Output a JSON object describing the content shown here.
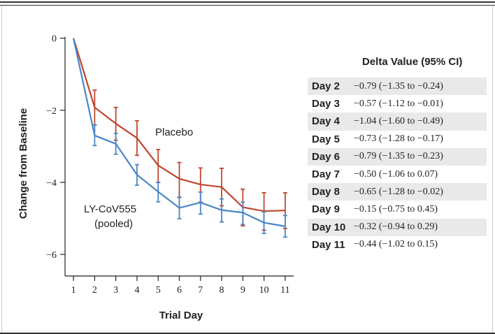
{
  "chart_data": {
    "type": "line",
    "xlabel": "Trial Day",
    "ylabel": "Change from Baseline",
    "x": [
      1,
      2,
      3,
      4,
      5,
      6,
      7,
      8,
      9,
      10,
      11
    ],
    "xticks": [
      "1",
      "2",
      "3",
      "4",
      "5",
      "6",
      "7",
      "8",
      "9",
      "10",
      "11"
    ],
    "yticks": [
      {
        "value": 0,
        "label": "0"
      },
      {
        "value": -2,
        "label": "−2"
      },
      {
        "value": -4,
        "label": "−4"
      },
      {
        "value": -6,
        "label": "−6"
      }
    ],
    "xlim": [
      0.6,
      11.4
    ],
    "ylim": [
      -6.6,
      0.15
    ],
    "grid": false,
    "series": [
      {
        "name": "Placebo",
        "color": "#c0462f",
        "values": [
          0,
          -1.92,
          -2.37,
          -2.77,
          -3.53,
          -3.9,
          -4.06,
          -4.13,
          -4.69,
          -4.8,
          -4.78
        ],
        "upper": [
          0,
          -1.44,
          -1.92,
          -2.29,
          -3.09,
          -3.45,
          -3.6,
          -3.61,
          -4.19,
          -4.29,
          -4.29
        ],
        "lower": [
          0,
          -2.41,
          -2.83,
          -3.25,
          -4.0,
          -4.42,
          -4.55,
          -4.65,
          -5.21,
          -5.33,
          -5.28
        ]
      },
      {
        "name": "LY-CoV555 (pooled)",
        "color": "#4a86c8",
        "values": [
          0,
          -2.7,
          -2.93,
          -3.79,
          -4.26,
          -4.71,
          -4.56,
          -4.77,
          -4.84,
          -5.12,
          -5.22
        ],
        "upper": [
          0,
          -2.41,
          -2.64,
          -3.51,
          -4.0,
          -4.41,
          -4.27,
          -4.46,
          -4.55,
          -4.82,
          -4.92
        ],
        "lower": [
          0,
          -2.98,
          -3.22,
          -4.08,
          -4.54,
          -5.01,
          -4.88,
          -5.1,
          -5.17,
          -5.42,
          -5.52
        ]
      }
    ],
    "annotations": [
      "Placebo",
      "LY-CoV555",
      "(pooled)"
    ]
  },
  "delta_table": {
    "title": "Delta Value (95% CI)",
    "rows": [
      {
        "day": "Day 2",
        "value": "−0.79 (−1.35 to −0.24)"
      },
      {
        "day": "Day 3",
        "value": "−0.57 (−1.12 to −0.01)"
      },
      {
        "day": "Day 4",
        "value": "−1.04 (−1.60 to −0.49)"
      },
      {
        "day": "Day 5",
        "value": "−0.73 (−1.28 to −0.17)"
      },
      {
        "day": "Day 6",
        "value": "−0.79 (−1.35 to −0.23)"
      },
      {
        "day": "Day 7",
        "value": "−0.50 (−1.06 to 0.07)"
      },
      {
        "day": "Day 8",
        "value": "−0.65 (−1.28 to −0.02)"
      },
      {
        "day": "Day 9",
        "value": "−0.15 (−0.75 to 0.45)"
      },
      {
        "day": "Day 10",
        "value": "−0.32 (−0.94 to 0.29)"
      },
      {
        "day": "Day 11",
        "value": "−0.44 (−1.02 to 0.15)"
      }
    ]
  }
}
